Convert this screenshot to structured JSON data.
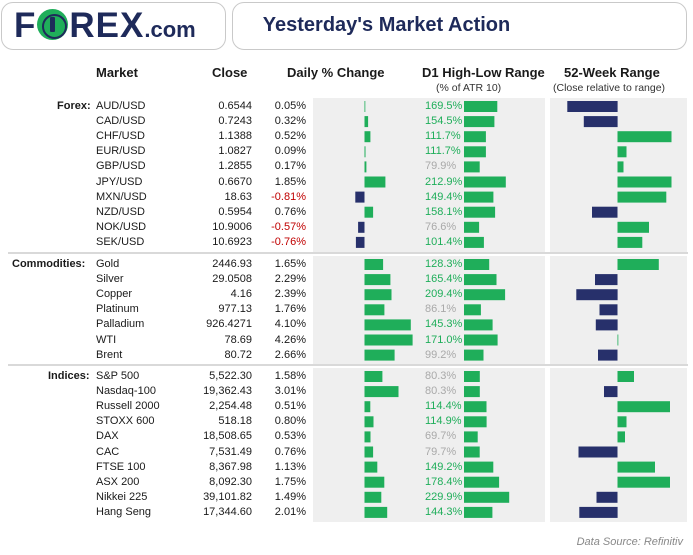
{
  "header": {
    "logo_left": "F",
    "logo_right": "REX",
    "logo_suffix": ".com",
    "title": "Yesterday's Market Action"
  },
  "columns": {
    "market": "Market",
    "close": "Close",
    "daily": "Daily % Change",
    "range": "D1 High-Low Range",
    "range_sub": "(% of ATR 10)",
    "week52": "52-Week Range",
    "week52_sub": "(Close relative to range)"
  },
  "colors": {
    "positive": "#1fae5a",
    "negative": "#27306b",
    "range_high": "#1fae5a",
    "range_low": "#a9a9a9",
    "panel_bg": "#efefef"
  },
  "chart_data": {
    "type": "table",
    "groups": [
      {
        "label": "Forex:",
        "rows": [
          {
            "market": "AUD/USD",
            "close": "0.6544",
            "daily": "0.05%",
            "daily_value": 0.05,
            "range": "169.5%",
            "range_value": 169.5,
            "w52": -0.67
          },
          {
            "market": "CAD/USD",
            "close": "0.7243",
            "daily": "0.32%",
            "daily_value": 0.32,
            "range": "154.5%",
            "range_value": 154.5,
            "w52": -0.45
          },
          {
            "market": "CHF/USD",
            "close": "1.1388",
            "daily": "0.52%",
            "daily_value": 0.52,
            "range": "111.7%",
            "range_value": 111.7,
            "w52": 0.72
          },
          {
            "market": "EUR/USD",
            "close": "1.0827",
            "daily": "0.09%",
            "daily_value": 0.09,
            "range": "111.7%",
            "range_value": 111.7,
            "w52": 0.12
          },
          {
            "market": "GBP/USD",
            "close": "1.2855",
            "daily": "0.17%",
            "daily_value": 0.17,
            "range": "79.9%",
            "range_value": 79.9,
            "w52": 0.08
          },
          {
            "market": "JPY/USD",
            "close": "0.6670",
            "daily": "1.85%",
            "daily_value": 1.85,
            "range": "212.9%",
            "range_value": 212.9,
            "w52": 0.72
          },
          {
            "market": "MXN/USD",
            "close": "18.63",
            "daily": "-0.81%",
            "daily_value": -0.81,
            "range": "149.4%",
            "range_value": 149.4,
            "w52": 0.65
          },
          {
            "market": "NZD/USD",
            "close": "0.5954",
            "daily": "0.76%",
            "daily_value": 0.76,
            "range": "158.1%",
            "range_value": 158.1,
            "w52": -0.34
          },
          {
            "market": "NOK/USD",
            "close": "10.9006",
            "daily": "-0.57%",
            "daily_value": -0.57,
            "range": "76.6%",
            "range_value": 76.6,
            "w52": 0.42
          },
          {
            "market": "SEK/USD",
            "close": "10.6923",
            "daily": "-0.76%",
            "daily_value": -0.76,
            "range": "101.4%",
            "range_value": 101.4,
            "w52": 0.33
          }
        ]
      },
      {
        "label": "Commodities:",
        "rows": [
          {
            "market": "Gold",
            "close": "2446.93",
            "daily": "1.65%",
            "daily_value": 1.65,
            "range": "128.3%",
            "range_value": 128.3,
            "w52": 0.55
          },
          {
            "market": "Silver",
            "close": "29.0508",
            "daily": "2.29%",
            "daily_value": 2.29,
            "range": "165.4%",
            "range_value": 165.4,
            "w52": -0.3
          },
          {
            "market": "Copper",
            "close": "4.16",
            "daily": "2.39%",
            "daily_value": 2.39,
            "range": "209.4%",
            "range_value": 209.4,
            "w52": -0.55
          },
          {
            "market": "Platinum",
            "close": "977.13",
            "daily": "1.76%",
            "daily_value": 1.76,
            "range": "86.1%",
            "range_value": 86.1,
            "w52": -0.24
          },
          {
            "market": "Palladium",
            "close": "926.4271",
            "daily": "4.10%",
            "daily_value": 4.1,
            "range": "145.3%",
            "range_value": 145.3,
            "w52": -0.29
          },
          {
            "market": "WTI",
            "close": "78.69",
            "daily": "4.26%",
            "daily_value": 4.26,
            "range": "171.0%",
            "range_value": 171.0,
            "w52": 0.01
          },
          {
            "market": "Brent",
            "close": "80.72",
            "daily": "2.66%",
            "daily_value": 2.66,
            "range": "99.2%",
            "range_value": 99.2,
            "w52": -0.26
          }
        ]
      },
      {
        "label": "Indices:",
        "rows": [
          {
            "market": "S&P 500",
            "close": "5,522.30",
            "daily": "1.58%",
            "daily_value": 1.58,
            "range": "80.3%",
            "range_value": 80.3,
            "w52": 0.22
          },
          {
            "market": "Nasdaq-100",
            "close": "19,362.43",
            "daily": "3.01%",
            "daily_value": 3.01,
            "range": "80.3%",
            "range_value": 80.3,
            "w52": -0.18
          },
          {
            "market": "Russell 2000",
            "close": "2,254.48",
            "daily": "0.51%",
            "daily_value": 0.51,
            "range": "114.4%",
            "range_value": 114.4,
            "w52": 0.7
          },
          {
            "market": "STOXX 600",
            "close": "518.18",
            "daily": "0.80%",
            "daily_value": 0.8,
            "range": "114.9%",
            "range_value": 114.9,
            "w52": 0.12
          },
          {
            "market": "DAX",
            "close": "18,508.65",
            "daily": "0.53%",
            "daily_value": 0.53,
            "range": "69.7%",
            "range_value": 69.7,
            "w52": 0.1
          },
          {
            "market": "CAC",
            "close": "7,531.49",
            "daily": "0.76%",
            "daily_value": 0.76,
            "range": "79.7%",
            "range_value": 79.7,
            "w52": -0.52
          },
          {
            "market": "FTSE 100",
            "close": "8,367.98",
            "daily": "1.13%",
            "daily_value": 1.13,
            "range": "149.2%",
            "range_value": 149.2,
            "w52": 0.5
          },
          {
            "market": "ASX 200",
            "close": "8,092.30",
            "daily": "1.75%",
            "daily_value": 1.75,
            "range": "178.4%",
            "range_value": 178.4,
            "w52": 0.7
          },
          {
            "market": "Nikkei 225",
            "close": "39,101.82",
            "daily": "1.49%",
            "daily_value": 1.49,
            "range": "229.9%",
            "range_value": 229.9,
            "w52": -0.28
          },
          {
            "market": "Hang Seng",
            "close": "17,344.60",
            "daily": "2.01%",
            "daily_value": 2.01,
            "range": "144.3%",
            "range_value": 144.3,
            "w52": -0.51
          }
        ]
      }
    ]
  },
  "footer": {
    "source": "Data Source: Refinitiv"
  }
}
